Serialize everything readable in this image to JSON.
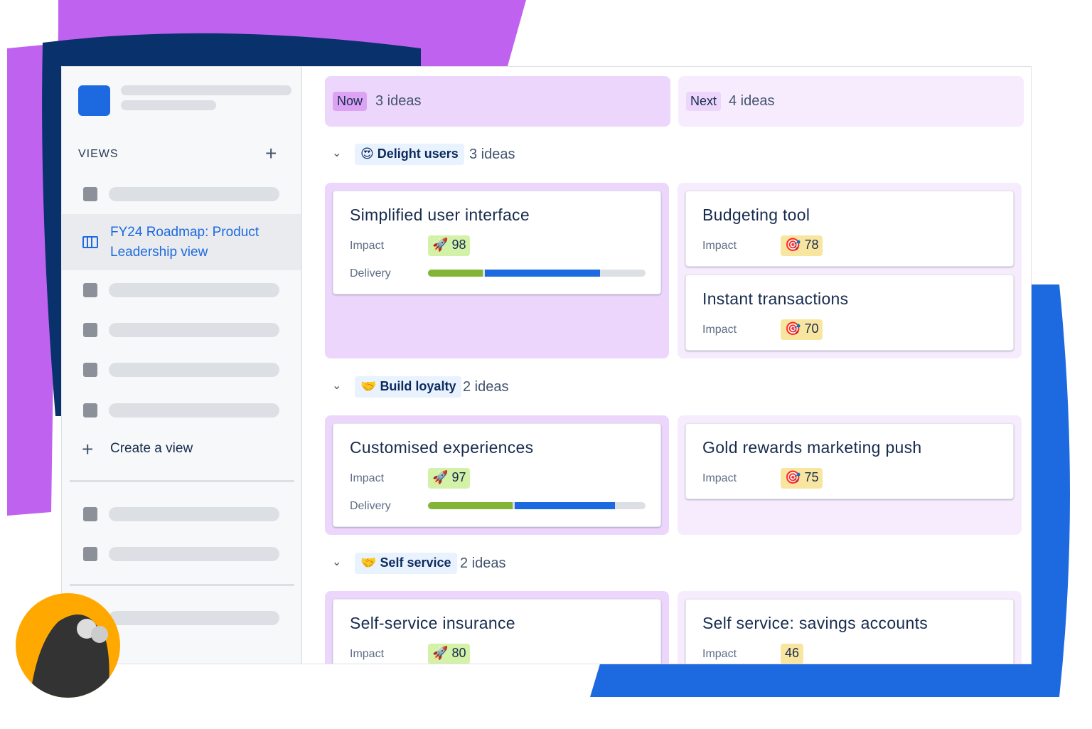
{
  "colors": {
    "now": "#edd6fc",
    "next": "#f7ecfe",
    "accent": "#1d6ae0",
    "green": "#82b536",
    "purple": "#c062f0",
    "navy": "#09326c"
  },
  "sidebar": {
    "views_label": "VIEWS",
    "add_icon": "plus-icon",
    "active_view": "FY24 Roadmap: Product Leadership view",
    "create_label": "Create a view"
  },
  "columns": [
    {
      "tag": "Now",
      "count": "3 ideas"
    },
    {
      "tag": "Next",
      "count": "4 ideas"
    }
  ],
  "groups": [
    {
      "emoji": "😍",
      "name": "Delight users",
      "count": "3 ideas"
    },
    {
      "emoji": "🤝",
      "name": "Build loyalty",
      "count": "2 ideas"
    },
    {
      "emoji": "🤝",
      "name": "Self service",
      "count": "2 ideas"
    }
  ],
  "labels": {
    "impact": "Impact",
    "delivery": "Delivery"
  },
  "cards": [
    {
      "title": "Simplified user interface",
      "icon": "🚀",
      "impact": "98",
      "delivery": {
        "done": 25,
        "in_progress": 53
      }
    },
    {
      "title": "Budgeting tool",
      "icon": "🎯",
      "impact": "78"
    },
    {
      "title": "Instant transactions",
      "icon": "🎯",
      "impact": "70"
    },
    {
      "title": "Customised experiences",
      "icon": "🚀",
      "impact": "97",
      "delivery": {
        "done": 39,
        "in_progress": 46
      }
    },
    {
      "title": "Gold rewards marketing push",
      "icon": "🎯",
      "impact": "75"
    },
    {
      "title": "Self-service insurance",
      "icon": "🚀",
      "impact": "80"
    },
    {
      "title": "Self service: savings accounts",
      "icon": "",
      "impact": "46"
    }
  ]
}
